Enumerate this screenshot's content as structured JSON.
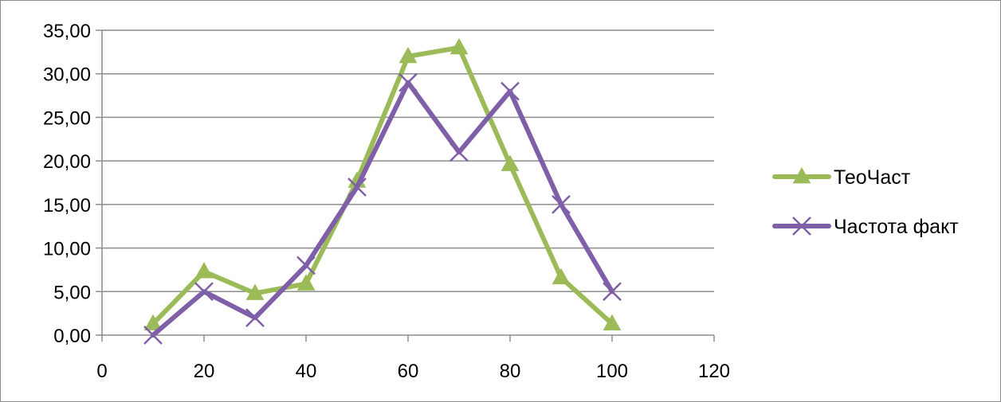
{
  "chart_data": {
    "type": "line",
    "title": "",
    "xlabel": "",
    "ylabel": "",
    "xlim": [
      0,
      120
    ],
    "ylim": [
      0,
      35
    ],
    "x_ticks": [
      "0",
      "20",
      "40",
      "60",
      "80",
      "100",
      "120"
    ],
    "y_ticks": [
      "0,00",
      "5,00",
      "10,00",
      "15,00",
      "20,00",
      "25,00",
      "30,00",
      "35,00"
    ],
    "x_tick_values": [
      0,
      20,
      40,
      60,
      80,
      100,
      120
    ],
    "y_tick_values": [
      0,
      5,
      10,
      15,
      20,
      25,
      30,
      35
    ],
    "grid": "horizontal",
    "legend_position": "right",
    "series": [
      {
        "name": "ТеоЧаст",
        "color": "#9BBB59",
        "marker": "triangle",
        "x": [
          10,
          20,
          30,
          40,
          50,
          60,
          70,
          80,
          90,
          100
        ],
        "y": [
          1.3,
          7.3,
          4.8,
          5.9,
          17.7,
          32.0,
          33.0,
          19.6,
          6.6,
          1.3
        ]
      },
      {
        "name": "Частота факт",
        "color": "#7F5FA8",
        "marker": "x",
        "x": [
          10,
          20,
          30,
          40,
          50,
          60,
          70,
          80,
          90,
          100
        ],
        "y": [
          0,
          5,
          2,
          8,
          17,
          29,
          21,
          28,
          15,
          5
        ]
      }
    ]
  }
}
